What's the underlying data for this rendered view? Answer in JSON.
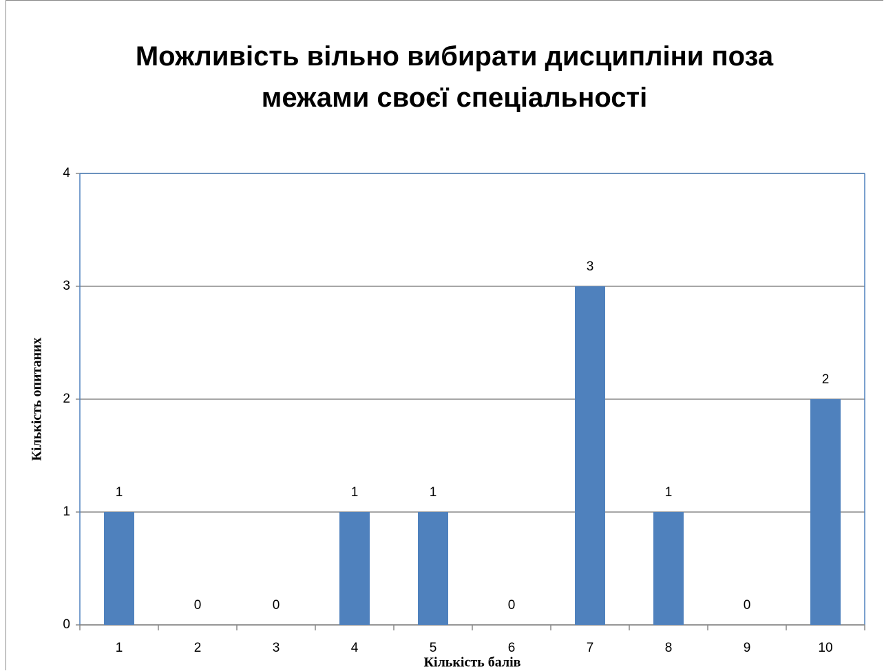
{
  "chart_data": {
    "type": "bar",
    "title": "Можливість вільно вибирати дисципліни поза межами своєї спеціальності",
    "x_label": "Кількість балів",
    "y_label": "Кількість опитаних",
    "categories": [
      "1",
      "2",
      "3",
      "4",
      "5",
      "6",
      "7",
      "8",
      "9",
      "10"
    ],
    "values": [
      1,
      0,
      0,
      1,
      1,
      0,
      3,
      1,
      0,
      2
    ],
    "color": "#4f81bd",
    "ylim": [
      0,
      4
    ],
    "yticks": [
      0,
      1,
      2,
      3,
      4
    ],
    "grid": true
  }
}
